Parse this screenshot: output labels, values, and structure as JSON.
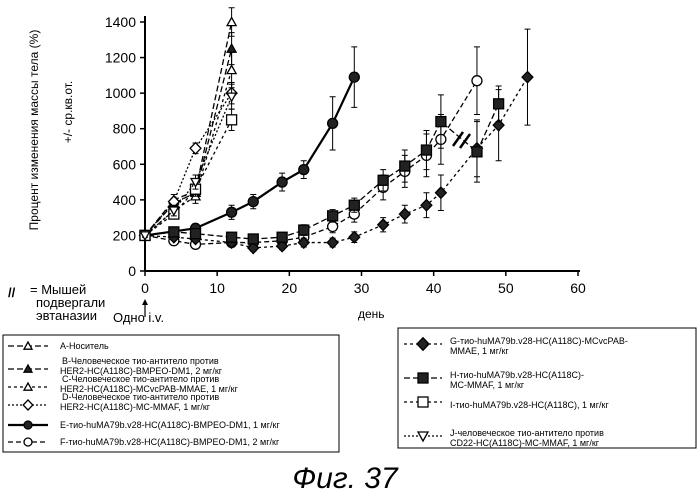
{
  "chart_data": {
    "type": "line",
    "xlabel": "день",
    "ylabel": "Процент изменения массы тела (%)",
    "ylabel2": "+/- ср.кв.от.",
    "xlim": [
      0,
      60
    ],
    "ylim": [
      0,
      1400
    ],
    "x_ticks": [
      "0",
      "10",
      "20",
      "30",
      "40",
      "50",
      "60"
    ],
    "y_ticks": [
      "0",
      "200",
      "400",
      "600",
      "800",
      "1000",
      "1200",
      "1400"
    ],
    "annotations": {
      "dose_label": "Одно i.v.",
      "euthanized_symbol": "//",
      "euthanized_label": [
        "= Мышей",
        "подвергали",
        "эвтаназии"
      ]
    },
    "series": [
      {
        "name": [
          "A-Носитель"
        ],
        "marker": "triangle-open",
        "dash": "6,3",
        "x": [
          0,
          4,
          7,
          12
        ],
        "y": [
          200,
          400,
          450,
          1400
        ],
        "err": [
          10,
          30,
          50,
          80
        ]
      },
      {
        "name": [
          "B-Человеческое тио-антитело против",
          "HER2-HC(A118C)-BMPEO-DM1, 2 мг/кг"
        ],
        "marker": "triangle-filled",
        "dash": "6,3",
        "x": [
          0,
          4,
          7,
          12
        ],
        "y": [
          200,
          380,
          440,
          1250
        ],
        "err": [
          10,
          30,
          40,
          90
        ]
      },
      {
        "name": [
          "C-Человеческое тио-антитело против",
          "HER2-HC(A118C)-MCvcPAB-MMAE, 1 мг/кг"
        ],
        "marker": "triangle-open",
        "dash": "3,3",
        "x": [
          0,
          4,
          7,
          12
        ],
        "y": [
          200,
          340,
          420,
          1130
        ],
        "err": [
          10,
          30,
          40,
          100
        ]
      },
      {
        "name": [
          "D-Человеческое тио-антитело против",
          "HER2-HC(A118C)-MC-MMAF, 1 мг/кг"
        ],
        "marker": "diamond-open",
        "dash": "2,2",
        "x": [
          0,
          4,
          7,
          12
        ],
        "y": [
          200,
          390,
          690,
          1000
        ],
        "err": [
          10,
          40,
          30,
          60
        ]
      },
      {
        "name": [
          "E-тио-huMA79b.v28-HC(A118C)-BMPEO-DM1, 1 мг/кг"
        ],
        "marker": "circle-filled",
        "dash": "",
        "x": [
          0,
          7,
          12,
          15,
          19,
          22,
          26,
          29
        ],
        "y": [
          200,
          240,
          330,
          390,
          500,
          570,
          830,
          1090
        ],
        "err": [
          10,
          20,
          40,
          40,
          50,
          50,
          150,
          170
        ]
      },
      {
        "name": [
          "F-тио-huMA79b.v28-HC(A118C)-BMPEO-DM1, 2 мг/кг"
        ],
        "marker": "circle-open",
        "dash": "5,3",
        "x": [
          0,
          4,
          7,
          12,
          15,
          19,
          22,
          26,
          29,
          33,
          36,
          39,
          41,
          46
        ],
        "y": [
          200,
          170,
          150,
          160,
          160,
          170,
          190,
          250,
          320,
          470,
          560,
          650,
          740,
          1070
        ],
        "err": [
          10,
          10,
          10,
          15,
          15,
          20,
          25,
          35,
          45,
          70,
          90,
          120,
          140,
          190
        ]
      },
      {
        "name": [
          "G-тио-huMA79b.v28-HC(A118C)-MCvcPAB-",
          "MMAE, 1 мг/кг"
        ],
        "marker": "diamond-filled",
        "dash": "3,3",
        "x": [
          0,
          4,
          7,
          12,
          15,
          19,
          22,
          26,
          29,
          33,
          36,
          39,
          41,
          46,
          49,
          53
        ],
        "y": [
          200,
          190,
          180,
          160,
          130,
          140,
          160,
          160,
          190,
          260,
          320,
          370,
          440,
          690,
          820,
          1090
        ],
        "err": [
          10,
          15,
          15,
          15,
          20,
          20,
          25,
          25,
          30,
          40,
          50,
          70,
          100,
          160,
          200,
          270
        ]
      },
      {
        "name": [
          "H-тио-huMA79b.v28-HC(A118C)-",
          "MC-MMAF, 1 мг/кг"
        ],
        "marker": "square-filled",
        "dash": "6,3",
        "x": [
          0,
          4,
          7,
          12,
          15,
          19,
          22,
          26,
          29,
          33,
          36,
          39,
          41,
          46,
          49
        ],
        "y": [
          200,
          220,
          210,
          190,
          180,
          190,
          230,
          310,
          370,
          510,
          590,
          680,
          840,
          670,
          940
        ],
        "err": [
          10,
          15,
          15,
          20,
          20,
          20,
          30,
          35,
          40,
          60,
          90,
          110,
          150,
          170,
          100
        ]
      },
      {
        "name": [
          "I-тио-huMA79b.v28-HC(A118C), 1 мг/кг"
        ],
        "marker": "square-open",
        "dash": "3,3",
        "x": [
          0,
          4,
          7,
          12
        ],
        "y": [
          200,
          320,
          460,
          850
        ],
        "err": [
          10,
          25,
          40,
          60
        ]
      },
      {
        "name": [
          "J-человеческое тио-антитело против",
          "CD22-HC(A118C)-MC-MMAF, 1 мг/кг"
        ],
        "marker": "triangle-down-open",
        "dash": "2,2",
        "x": [
          0,
          4,
          7,
          12
        ],
        "y": [
          200,
          340,
          500,
          980
        ],
        "err": [
          10,
          30,
          40,
          70
        ]
      }
    ]
  },
  "figure_caption": "Фиг. 37"
}
